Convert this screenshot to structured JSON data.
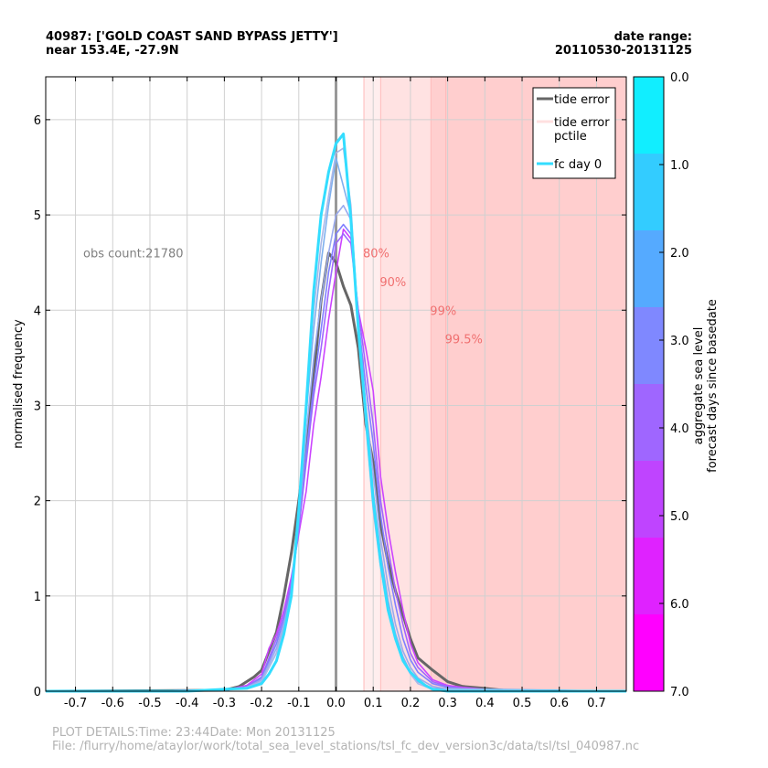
{
  "header": {
    "station_line": "40987: ['GOLD COAST SAND BYPASS JETTY']",
    "location_line": "near 153.4E, -27.9N",
    "date_range_label": "date range:",
    "date_range_value": "20110530-20131125"
  },
  "footer": {
    "details": "PLOT DETAILS:Time: 23:44Date: Mon 20131125",
    "file": "File: /flurry/home/ataylor/work/total_sea_level_stations/tsl_fc_dev_version3c/data/tsl/tsl_040987.nc"
  },
  "chart_data": {
    "type": "line",
    "title": "",
    "xlabel": "",
    "ylabel": "normalised frequency",
    "xlim": [
      -0.78,
      0.78
    ],
    "ylim": [
      0,
      6.45
    ],
    "grid": true,
    "xticks": [
      -0.7,
      -0.6,
      -0.5,
      -0.4,
      -0.3,
      -0.2,
      -0.1,
      0.0,
      0.1,
      0.2,
      0.3,
      0.4,
      0.5,
      0.6,
      0.7
    ],
    "yticks": [
      0,
      1,
      2,
      3,
      4,
      5,
      6
    ],
    "xtick_labels": [
      "-0.7",
      "-0.6",
      "-0.5",
      "-0.4",
      "-0.3",
      "-0.2",
      "-0.1",
      "0.0",
      "0.1",
      "0.2",
      "0.3",
      "0.4",
      "0.5",
      "0.6",
      "0.7"
    ],
    "ytick_labels": [
      "0",
      "1",
      "2",
      "3",
      "4",
      "5",
      "6"
    ],
    "annotation": "obs count:21780",
    "percentile_bands": [
      {
        "label": "80%",
        "x": 0.075,
        "color": "#ffeeee",
        "label_y": 4.6
      },
      {
        "label": "90%",
        "x": 0.12,
        "color": "#ffe0e0",
        "label_y": 4.3
      },
      {
        "label": "99%",
        "x": 0.255,
        "color": "#ffcdcd",
        "label_y": 4.0
      },
      {
        "label": "99.5%",
        "x": 0.295,
        "color": "#ffcdcd",
        "label_y": 3.7
      }
    ],
    "band_label_color": "#f07070",
    "legend": {
      "position": "top-right",
      "entries": [
        {
          "label": "tide error",
          "color": "#666666"
        },
        {
          "label": "tide error\npctile",
          "color": "#ffe0e0"
        },
        {
          "label": "fc day 0",
          "color": "#33ddff"
        }
      ]
    },
    "series": [
      {
        "name": "tide error",
        "color": "#666666",
        "width": 3,
        "x": [
          -0.78,
          -0.3,
          -0.26,
          -0.22,
          -0.2,
          -0.16,
          -0.14,
          -0.12,
          -0.1,
          -0.08,
          -0.06,
          -0.04,
          -0.02,
          0.0,
          0.02,
          0.04,
          0.06,
          0.08,
          0.1,
          0.12,
          0.14,
          0.16,
          0.18,
          0.2,
          0.22,
          0.26,
          0.3,
          0.34,
          0.4,
          0.45,
          0.5,
          0.78
        ],
        "y": [
          0,
          0.01,
          0.05,
          0.15,
          0.22,
          0.62,
          1.0,
          1.45,
          2.0,
          2.6,
          3.3,
          4.1,
          4.6,
          4.5,
          4.25,
          4.05,
          3.6,
          2.8,
          2.4,
          1.75,
          1.35,
          1.05,
          0.8,
          0.55,
          0.35,
          0.22,
          0.1,
          0.05,
          0.03,
          0.01,
          0.0,
          0.0
        ]
      },
      {
        "name": "fc day 6",
        "color": "#cc44ff",
        "width": 1.6,
        "x": [
          -0.78,
          -0.3,
          -0.24,
          -0.2,
          -0.18,
          -0.16,
          -0.14,
          -0.12,
          -0.1,
          -0.08,
          -0.06,
          -0.04,
          -0.02,
          0.0,
          0.02,
          0.04,
          0.06,
          0.08,
          0.1,
          0.12,
          0.14,
          0.16,
          0.18,
          0.2,
          0.22,
          0.26,
          0.3,
          0.34,
          0.4,
          0.44,
          0.78
        ],
        "y": [
          0,
          0.01,
          0.06,
          0.18,
          0.45,
          0.6,
          0.85,
          1.2,
          1.65,
          2.1,
          2.8,
          3.3,
          3.9,
          4.4,
          4.85,
          4.75,
          4.0,
          3.6,
          3.15,
          2.25,
          1.7,
          1.25,
          0.85,
          0.5,
          0.3,
          0.12,
          0.06,
          0.04,
          0.02,
          0.01,
          0.0
        ]
      },
      {
        "name": "fc day 5",
        "color": "#a066ff",
        "width": 1.6,
        "x": [
          -0.78,
          -0.3,
          -0.24,
          -0.2,
          -0.16,
          -0.14,
          -0.12,
          -0.1,
          -0.08,
          -0.06,
          -0.04,
          -0.02,
          0.0,
          0.02,
          0.04,
          0.06,
          0.08,
          0.1,
          0.12,
          0.14,
          0.16,
          0.18,
          0.2,
          0.22,
          0.26,
          0.3,
          0.34,
          0.4,
          0.78
        ],
        "y": [
          0,
          0.01,
          0.05,
          0.15,
          0.55,
          0.8,
          1.15,
          1.7,
          2.4,
          3.1,
          3.6,
          4.2,
          4.7,
          4.8,
          4.7,
          4.0,
          3.4,
          2.8,
          2.0,
          1.5,
          1.05,
          0.7,
          0.4,
          0.25,
          0.1,
          0.05,
          0.03,
          0.01,
          0.0
        ]
      },
      {
        "name": "fc day 4",
        "color": "#8080ff",
        "width": 1.6,
        "x": [
          -0.78,
          -0.3,
          -0.24,
          -0.2,
          -0.16,
          -0.14,
          -0.12,
          -0.1,
          -0.08,
          -0.06,
          -0.04,
          -0.02,
          0.0,
          0.02,
          0.04,
          0.06,
          0.08,
          0.1,
          0.12,
          0.14,
          0.16,
          0.18,
          0.2,
          0.22,
          0.26,
          0.3,
          0.34,
          0.78
        ],
        "y": [
          0,
          0.01,
          0.04,
          0.14,
          0.5,
          0.75,
          1.1,
          1.7,
          2.5,
          3.2,
          3.8,
          4.4,
          4.8,
          4.9,
          4.8,
          3.9,
          3.2,
          2.6,
          1.85,
          1.3,
          0.9,
          0.55,
          0.33,
          0.2,
          0.08,
          0.04,
          0.02,
          0.0
        ]
      },
      {
        "name": "fc day 3",
        "color": "#9aaaee",
        "width": 1.6,
        "x": [
          -0.78,
          -0.3,
          -0.24,
          -0.2,
          -0.16,
          -0.14,
          -0.12,
          -0.1,
          -0.08,
          -0.06,
          -0.04,
          -0.02,
          0.0,
          0.02,
          0.04,
          0.06,
          0.08,
          0.1,
          0.12,
          0.14,
          0.16,
          0.18,
          0.2,
          0.22,
          0.26,
          0.3,
          0.78
        ],
        "y": [
          0,
          0.01,
          0.04,
          0.12,
          0.45,
          0.7,
          1.05,
          1.8,
          2.7,
          3.5,
          4.1,
          4.6,
          5.0,
          5.1,
          4.95,
          3.8,
          3.0,
          2.3,
          1.6,
          1.1,
          0.7,
          0.42,
          0.25,
          0.14,
          0.05,
          0.02,
          0.0
        ]
      },
      {
        "name": "fc day 2",
        "color": "#7fb0ee",
        "width": 1.6,
        "x": [
          -0.78,
          -0.3,
          -0.24,
          -0.2,
          -0.16,
          -0.14,
          -0.12,
          -0.1,
          -0.08,
          -0.06,
          -0.04,
          -0.02,
          0.0,
          0.02,
          0.04,
          0.06,
          0.08,
          0.1,
          0.12,
          0.14,
          0.16,
          0.18,
          0.2,
          0.22,
          0.26,
          0.78
        ],
        "y": [
          0,
          0.01,
          0.04,
          0.1,
          0.4,
          0.65,
          1.0,
          1.9,
          2.9,
          3.8,
          4.5,
          5.1,
          5.6,
          5.3,
          5.0,
          3.9,
          3.0,
          2.1,
          1.45,
          0.95,
          0.6,
          0.36,
          0.2,
          0.1,
          0.03,
          0.0
        ]
      },
      {
        "name": "fc day 1",
        "color": "#aab8e8",
        "width": 1.6,
        "x": [
          -0.78,
          -0.3,
          -0.24,
          -0.2,
          -0.16,
          -0.14,
          -0.12,
          -0.1,
          -0.08,
          -0.06,
          -0.04,
          -0.02,
          0.0,
          0.02,
          0.04,
          0.06,
          0.08,
          0.1,
          0.12,
          0.14,
          0.16,
          0.18,
          0.2,
          0.22,
          0.26,
          0.78
        ],
        "y": [
          0,
          0.01,
          0.04,
          0.1,
          0.4,
          0.65,
          1.0,
          1.95,
          3.0,
          4.0,
          4.7,
          5.2,
          5.65,
          5.7,
          5.1,
          3.8,
          2.8,
          1.9,
          1.3,
          0.85,
          0.55,
          0.32,
          0.18,
          0.08,
          0.02,
          0.0
        ]
      },
      {
        "name": "fc day 0",
        "color": "#33ddff",
        "width": 3,
        "x": [
          -0.78,
          -0.4,
          -0.3,
          -0.24,
          -0.2,
          -0.18,
          -0.16,
          -0.14,
          -0.12,
          -0.1,
          -0.08,
          -0.06,
          -0.04,
          -0.02,
          0.0,
          0.02,
          0.04,
          0.06,
          0.08,
          0.1,
          0.12,
          0.14,
          0.16,
          0.18,
          0.2,
          0.22,
          0.24,
          0.26,
          0.3,
          0.78
        ],
        "y": [
          0,
          0.0,
          0.02,
          0.03,
          0.08,
          0.18,
          0.32,
          0.6,
          1.0,
          1.9,
          3.0,
          4.2,
          5.0,
          5.45,
          5.75,
          5.85,
          4.95,
          3.8,
          2.9,
          2.0,
          1.35,
          0.85,
          0.55,
          0.32,
          0.2,
          0.12,
          0.06,
          0.02,
          0.0,
          0.0
        ]
      }
    ],
    "colorbar": {
      "label_line1": "aggregate sea level",
      "label_line2": "forecast days since basedate",
      "ticks": [
        "0.0",
        "1.0",
        "2.0",
        "3.0",
        "4.0",
        "5.0",
        "6.0",
        "7.0"
      ],
      "colors": [
        "#11eeff",
        "#33ccff",
        "#55aaff",
        "#7f88ff",
        "#9f66ff",
        "#bf44ff",
        "#df22ff",
        "#ff00ff"
      ]
    }
  }
}
